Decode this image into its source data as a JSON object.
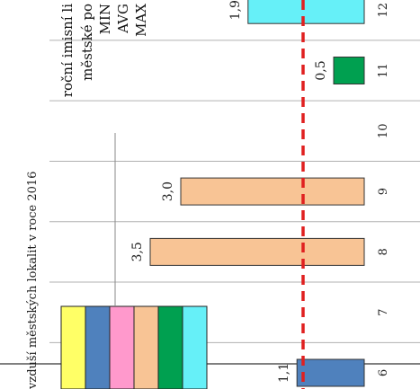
{
  "chart_data": {
    "type": "bar",
    "orientation": "rotated-90-cw",
    "title_fragment": "vzduší městských lokalit v roce 2016",
    "categories": [
      "6",
      "7",
      "8",
      "9",
      "10",
      "11",
      "12"
    ],
    "values": [
      1.1,
      null,
      3.5,
      3.0,
      null,
      0.5,
      1.9
    ],
    "value_labels": [
      "1,1",
      "",
      "3,5",
      "3,0",
      "",
      "0,5",
      "1,9"
    ],
    "bar_colors": [
      "#4f81bd",
      null,
      "#f8c495",
      "#f8c495",
      null,
      "#00a050",
      "#66f0f8"
    ],
    "limit_line": {
      "value": 1.0,
      "color": "#e02020",
      "style": "dashed"
    },
    "legend_swatches": [
      "#ffff66",
      "#4f81bd",
      "#ff99cc",
      "#f8c495",
      "#00a050",
      "#66f0f8"
    ],
    "annotation_lines": [
      "roční imisní li",
      "městské po",
      "MIN",
      "AVG",
      "MAX"
    ],
    "grid": true,
    "ylim": [
      0,
      4
    ]
  }
}
